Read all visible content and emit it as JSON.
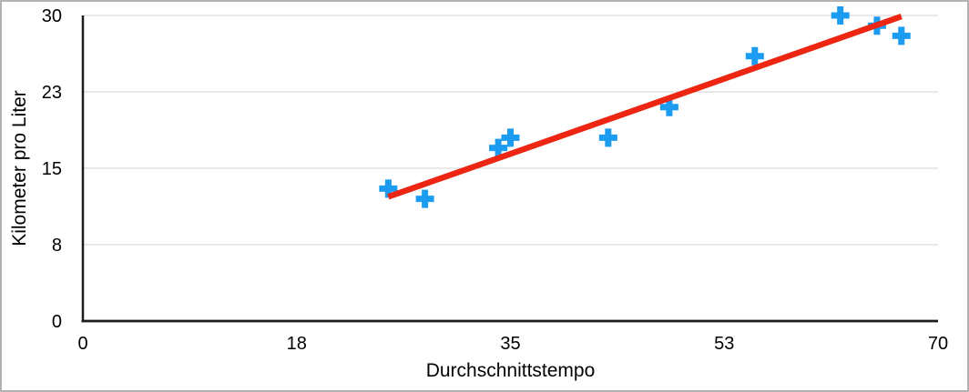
{
  "frame": {
    "background": "#ffffff",
    "border_color": "#b2b2b2"
  },
  "chart_data": {
    "type": "scatter",
    "title": "",
    "xlabel": "Durchschnittstempo",
    "ylabel": "Kilometer pro Liter",
    "xlim": [
      0,
      70
    ],
    "ylim": [
      0,
      30
    ],
    "xticks": [
      {
        "value": 0,
        "label": "0"
      },
      {
        "value": 17.5,
        "label": "18"
      },
      {
        "value": 35,
        "label": "35"
      },
      {
        "value": 52.5,
        "label": "53"
      },
      {
        "value": 70,
        "label": "70"
      }
    ],
    "yticks": [
      {
        "value": 0,
        "label": "0"
      },
      {
        "value": 7.5,
        "label": "8"
      },
      {
        "value": 15,
        "label": "15"
      },
      {
        "value": 22.5,
        "label": "23"
      },
      {
        "value": 30,
        "label": "30"
      }
    ],
    "grid": "horizontal",
    "legend": "none",
    "series": [
      {
        "marker": "plus",
        "color": "#1c9cf1",
        "points": [
          [
            25,
            13
          ],
          [
            28,
            12
          ],
          [
            34,
            17
          ],
          [
            35,
            18
          ],
          [
            43,
            18
          ],
          [
            48,
            21
          ],
          [
            55,
            26
          ],
          [
            62,
            30
          ],
          [
            65,
            29
          ],
          [
            67,
            28
          ]
        ]
      }
    ],
    "trendline": {
      "type": "linear",
      "color": "#ec2612",
      "from": [
        25,
        12.2
      ],
      "to": [
        67,
        29.9
      ]
    },
    "colors": {
      "grid": "#d9d9d9",
      "axis": "#1c1c1c",
      "text": "#000000"
    }
  }
}
